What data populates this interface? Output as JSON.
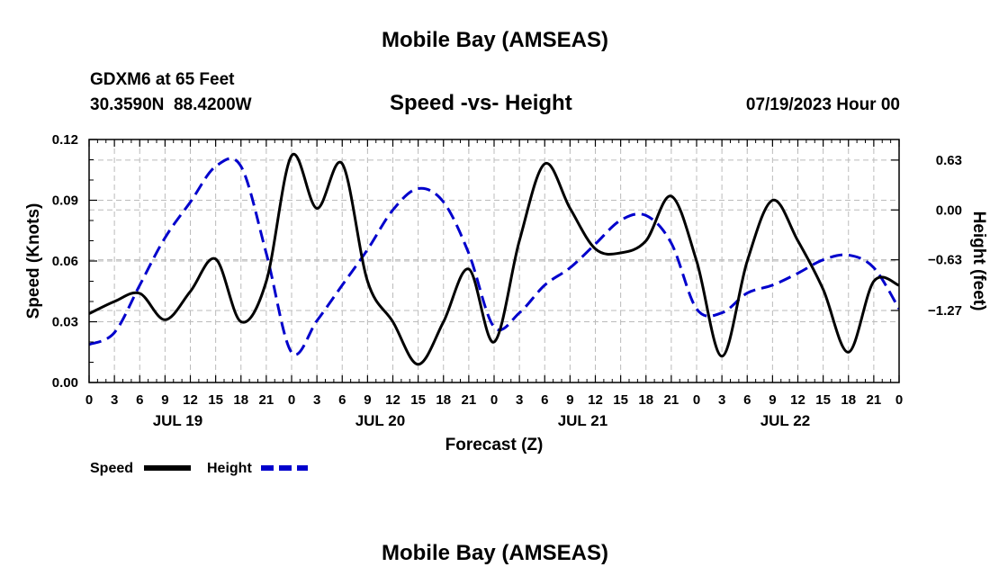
{
  "header": {
    "title": "Mobile Bay (AMSEAS)",
    "station": "GDXM6 at 65 Feet",
    "coords": "30.3590N  88.4200W",
    "chart_title": "Speed -vs- Height",
    "datetime": "07/19/2023 Hour 00"
  },
  "footer": {
    "title": "Mobile Bay (AMSEAS)"
  },
  "legend": {
    "speed_label": "Speed",
    "height_label": "Height"
  },
  "colors": {
    "speed": "#000000",
    "height": "#0000cc",
    "grid": "#bbbbbb"
  },
  "chart_data": {
    "type": "line",
    "title": "Speed -vs- Height",
    "xlabel": "Forecast (Z)",
    "ylabel": "Speed (Knots)",
    "y2label": "Height (feet)",
    "xlim": [
      0,
      96
    ],
    "ylim": [
      0,
      0.12
    ],
    "y2lim": [
      -2.18,
      0.89
    ],
    "x_ticks": [
      0,
      3,
      6,
      9,
      12,
      15,
      18,
      21,
      24,
      27,
      30,
      33,
      36,
      39,
      42,
      45,
      48,
      51,
      54,
      57,
      60,
      63,
      66,
      69,
      72,
      75,
      78,
      81,
      84,
      87,
      90,
      93,
      96
    ],
    "x_tick_labels": [
      "0",
      "3",
      "6",
      "9",
      "12",
      "15",
      "18",
      "21",
      "0",
      "3",
      "6",
      "9",
      "12",
      "15",
      "18",
      "21",
      "0",
      "3",
      "6",
      "9",
      "12",
      "15",
      "18",
      "21",
      "0",
      "3",
      "6",
      "9",
      "12",
      "15",
      "18",
      "21",
      "0"
    ],
    "day_labels": [
      {
        "x": 10.5,
        "label": "JUL 19"
      },
      {
        "x": 34.5,
        "label": "JUL 20"
      },
      {
        "x": 58.5,
        "label": "JUL 21"
      },
      {
        "x": 82.5,
        "label": "JUL 22"
      }
    ],
    "y_ticks": [
      0,
      0.03,
      0.06,
      0.09,
      0.12
    ],
    "y_tick_labels": [
      "0.00",
      "0.03",
      "0.06",
      "0.09",
      "0.12"
    ],
    "y2_ticks": [
      -1.27,
      -0.63,
      0.0,
      0.63
    ],
    "y2_tick_labels": [
      "−1.27",
      "−0.63",
      "0.00",
      "0.63"
    ],
    "series": [
      {
        "name": "Speed",
        "axis": "left",
        "style": "solid",
        "x": [
          0,
          3,
          6,
          9,
          12,
          15,
          18,
          21,
          24,
          27,
          30,
          33,
          36,
          39,
          42,
          45,
          48,
          51,
          54,
          57,
          60,
          63,
          66,
          69,
          72,
          75,
          78,
          81,
          84,
          87,
          90,
          93,
          96
        ],
        "values": [
          0.034,
          0.04,
          0.044,
          0.031,
          0.045,
          0.061,
          0.03,
          0.05,
          0.112,
          0.086,
          0.108,
          0.05,
          0.03,
          0.009,
          0.03,
          0.056,
          0.02,
          0.07,
          0.108,
          0.086,
          0.066,
          0.064,
          0.07,
          0.092,
          0.06,
          0.013,
          0.06,
          0.09,
          0.07,
          0.046,
          0.015,
          0.05,
          0.048
        ]
      },
      {
        "name": "Height",
        "axis": "right",
        "style": "dashed",
        "x": [
          0,
          3,
          6,
          9,
          12,
          15,
          18,
          21,
          24,
          27,
          30,
          33,
          36,
          39,
          42,
          45,
          48,
          51,
          54,
          57,
          60,
          63,
          66,
          69,
          72,
          75,
          78,
          81,
          84,
          87,
          90,
          93,
          96
        ],
        "values": [
          -1.7,
          -1.55,
          -0.95,
          -0.35,
          0.1,
          0.55,
          0.55,
          -0.55,
          -1.8,
          -1.4,
          -0.95,
          -0.5,
          0.0,
          0.27,
          0.1,
          -0.55,
          -1.48,
          -1.3,
          -0.95,
          -0.73,
          -0.43,
          -0.13,
          -0.07,
          -0.42,
          -1.25,
          -1.3,
          -1.05,
          -0.95,
          -0.8,
          -0.63,
          -0.57,
          -0.73,
          -1.25
        ]
      }
    ]
  }
}
